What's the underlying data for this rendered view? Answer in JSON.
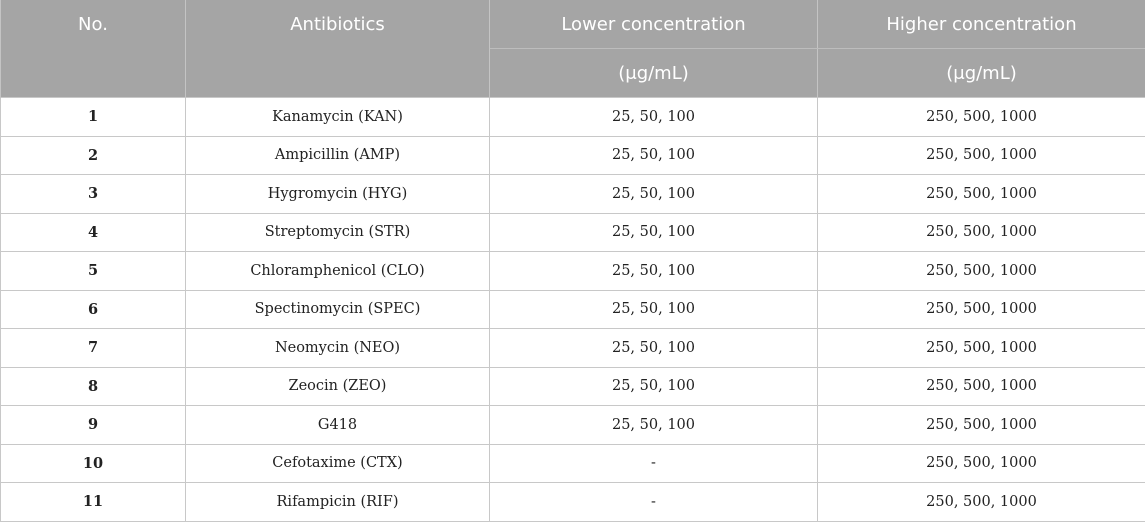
{
  "header": {
    "no": "No.",
    "antibiotics": "Antibiotics",
    "lower": "Lower concentration",
    "higher": "Higher concentration",
    "lower_unit": "(μg/mL)",
    "higher_unit": "(μg/mL)"
  },
  "rows": [
    {
      "no": "1",
      "antibiotic": "Kanamycin (KAN)",
      "lower": "25, 50, 100",
      "higher": "250, 500, 1000"
    },
    {
      "no": "2",
      "antibiotic": "Ampicillin (AMP)",
      "lower": "25, 50, 100",
      "higher": "250, 500, 1000"
    },
    {
      "no": "3",
      "antibiotic": "Hygromycin (HYG)",
      "lower": "25, 50, 100",
      "higher": "250, 500, 1000"
    },
    {
      "no": "4",
      "antibiotic": "Streptomycin (STR)",
      "lower": "25, 50, 100",
      "higher": "250, 500, 1000"
    },
    {
      "no": "5",
      "antibiotic": "Chloramphenicol (CLO)",
      "lower": "25, 50, 100",
      "higher": "250, 500, 1000"
    },
    {
      "no": "6",
      "antibiotic": "Spectinomycin (SPEC)",
      "lower": "25, 50, 100",
      "higher": "250, 500, 1000"
    },
    {
      "no": "7",
      "antibiotic": "Neomycin (NEO)",
      "lower": "25, 50, 100",
      "higher": "250, 500, 1000"
    },
    {
      "no": "8",
      "antibiotic": "Zeocin (ZEO)",
      "lower": "25, 50, 100",
      "higher": "250, 500, 1000"
    },
    {
      "no": "9",
      "antibiotic": "G418",
      "lower": "25, 50, 100",
      "higher": "250, 500, 1000"
    },
    {
      "no": "10",
      "antibiotic": "Cefotaxime (CTX)",
      "lower": "-",
      "higher": "250, 500, 1000"
    },
    {
      "no": "11",
      "antibiotic": "Rifampicin (RIF)",
      "lower": "-",
      "higher": "250, 500, 1000"
    }
  ]
}
